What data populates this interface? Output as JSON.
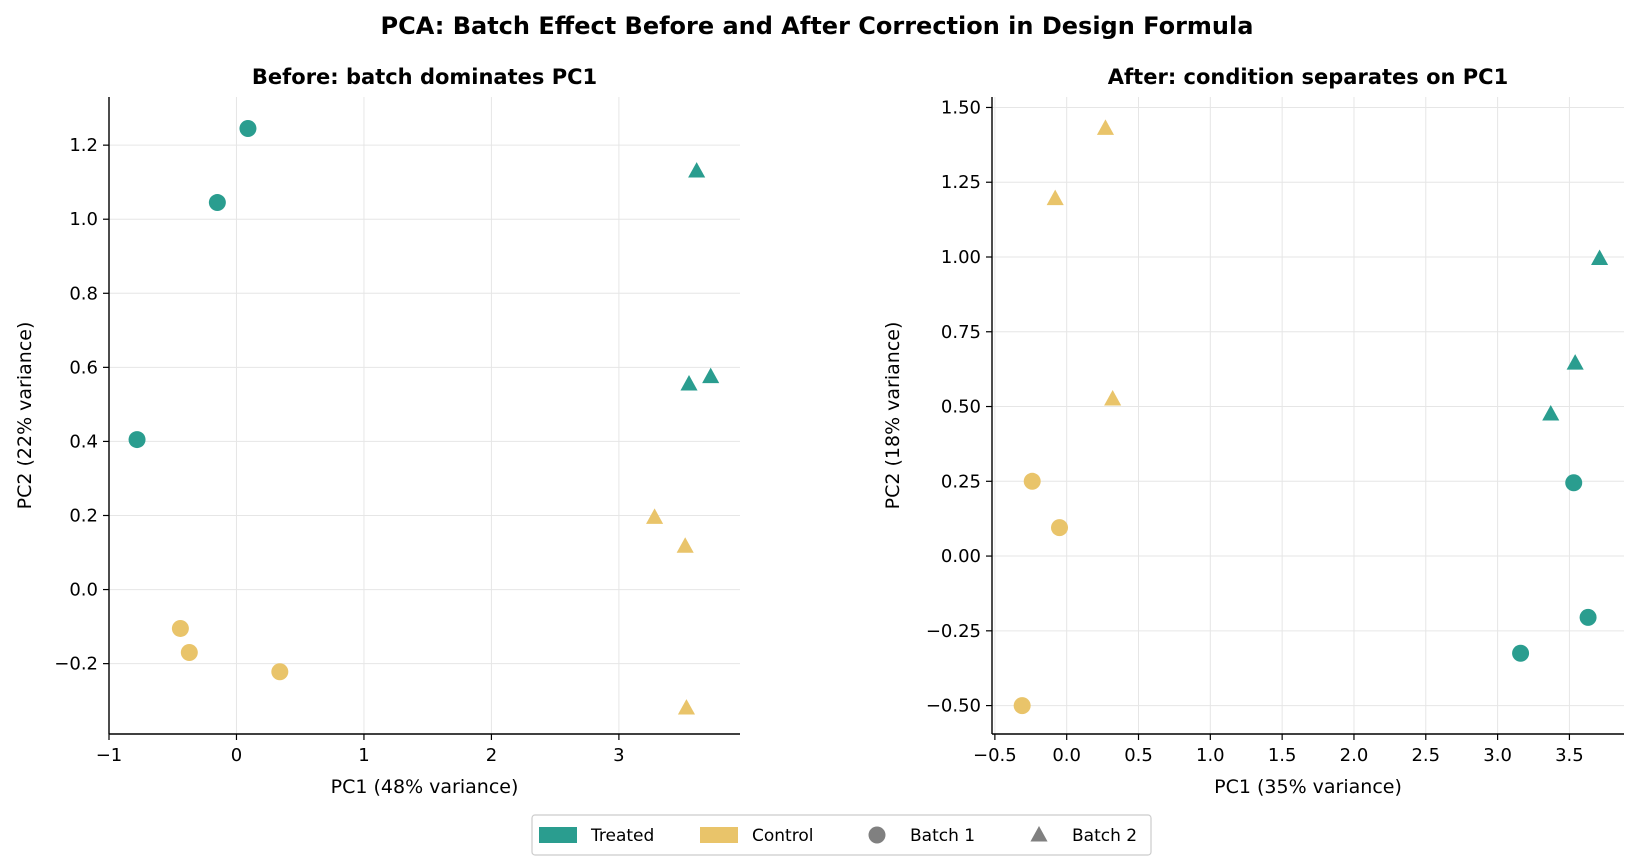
{
  "chart_data": {
    "suptitle": "PCA: Batch Effect Before and After Correction in Design Formula",
    "type": "scatter",
    "legend": {
      "placement": "bottom-center",
      "entries": [
        {
          "label": "Treated",
          "kind": "patch",
          "color": "#2a9d8f"
        },
        {
          "label": "Control",
          "kind": "patch",
          "color": "#e9c46a"
        },
        {
          "label": "Batch 1",
          "kind": "circle",
          "color": "#808080"
        },
        {
          "label": "Batch 2",
          "kind": "triangle",
          "color": "#808080"
        }
      ]
    },
    "colors": {
      "Treated": "#2a9d8f",
      "Control": "#e9c46a"
    },
    "markers": {
      "Batch 1": "circle",
      "Batch 2": "triangle"
    },
    "panels": [
      {
        "title": "Before: batch dominates PC1",
        "xlabel": "PC1 (48% variance)",
        "ylabel": "PC2 (22% variance)",
        "xlim": [
          -1.0,
          3.95
        ],
        "ylim": [
          -0.39,
          1.33
        ],
        "xticks": [
          -1,
          0,
          1,
          2,
          3
        ],
        "xtick_labels": [
          "−1",
          "0",
          "1",
          "2",
          "3"
        ],
        "yticks": [
          -0.2,
          0.0,
          0.2,
          0.4,
          0.6,
          0.8,
          1.0,
          1.2
        ],
        "ytick_labels": [
          "−0.2",
          "0.0",
          "0.2",
          "0.4",
          "0.6",
          "0.8",
          "1.0",
          "1.2"
        ],
        "grid": true,
        "points": [
          {
            "x": 0.09,
            "y": 1.245,
            "condition": "Treated",
            "batch": "Batch 1"
          },
          {
            "x": -0.15,
            "y": 1.045,
            "condition": "Treated",
            "batch": "Batch 1"
          },
          {
            "x": -0.78,
            "y": 0.405,
            "condition": "Treated",
            "batch": "Batch 1"
          },
          {
            "x": 3.61,
            "y": 1.13,
            "condition": "Treated",
            "batch": "Batch 2"
          },
          {
            "x": 3.72,
            "y": 0.575,
            "condition": "Treated",
            "batch": "Batch 2"
          },
          {
            "x": 3.55,
            "y": 0.555,
            "condition": "Treated",
            "batch": "Batch 2"
          },
          {
            "x": -0.44,
            "y": -0.105,
            "condition": "Control",
            "batch": "Batch 1"
          },
          {
            "x": -0.37,
            "y": -0.17,
            "condition": "Control",
            "batch": "Batch 1"
          },
          {
            "x": 0.34,
            "y": -0.222,
            "condition": "Control",
            "batch": "Batch 1"
          },
          {
            "x": 3.28,
            "y": 0.195,
            "condition": "Control",
            "batch": "Batch 2"
          },
          {
            "x": 3.52,
            "y": 0.117,
            "condition": "Control",
            "batch": "Batch 2"
          },
          {
            "x": 3.53,
            "y": -0.32,
            "condition": "Control",
            "batch": "Batch 2"
          }
        ]
      },
      {
        "title": "After: condition separates on PC1",
        "xlabel": "PC1 (35% variance)",
        "ylabel": "PC2 (18% variance)",
        "xlim": [
          -0.52,
          3.88
        ],
        "ylim": [
          -0.595,
          1.535
        ],
        "xticks": [
          -0.5,
          0.0,
          0.5,
          1.0,
          1.5,
          2.0,
          2.5,
          3.0,
          3.5
        ],
        "xtick_labels": [
          "−0.5",
          "0.0",
          "0.5",
          "1.0",
          "1.5",
          "2.0",
          "2.5",
          "3.0",
          "3.5"
        ],
        "yticks": [
          -0.5,
          -0.25,
          0.0,
          0.25,
          0.5,
          0.75,
          1.0,
          1.25,
          1.5
        ],
        "ytick_labels": [
          "−0.50",
          "−0.25",
          "0.00",
          "0.25",
          "0.50",
          "0.75",
          "1.00",
          "1.25",
          "1.50"
        ],
        "grid": true,
        "points": [
          {
            "x": 3.53,
            "y": 0.245,
            "condition": "Treated",
            "batch": "Batch 1"
          },
          {
            "x": 3.63,
            "y": -0.205,
            "condition": "Treated",
            "batch": "Batch 1"
          },
          {
            "x": 3.16,
            "y": -0.325,
            "condition": "Treated",
            "batch": "Batch 1"
          },
          {
            "x": 3.71,
            "y": 0.995,
            "condition": "Treated",
            "batch": "Batch 2"
          },
          {
            "x": 3.54,
            "y": 0.645,
            "condition": "Treated",
            "batch": "Batch 2"
          },
          {
            "x": 3.37,
            "y": 0.475,
            "condition": "Treated",
            "batch": "Batch 2"
          },
          {
            "x": -0.24,
            "y": 0.25,
            "condition": "Control",
            "batch": "Batch 1"
          },
          {
            "x": -0.05,
            "y": 0.095,
            "condition": "Control",
            "batch": "Batch 1"
          },
          {
            "x": -0.31,
            "y": -0.5,
            "condition": "Control",
            "batch": "Batch 1"
          },
          {
            "x": 0.27,
            "y": 1.43,
            "condition": "Control",
            "batch": "Batch 2"
          },
          {
            "x": -0.08,
            "y": 1.195,
            "condition": "Control",
            "batch": "Batch 2"
          },
          {
            "x": 0.32,
            "y": 0.525,
            "condition": "Control",
            "batch": "Batch 2"
          }
        ]
      }
    ]
  }
}
